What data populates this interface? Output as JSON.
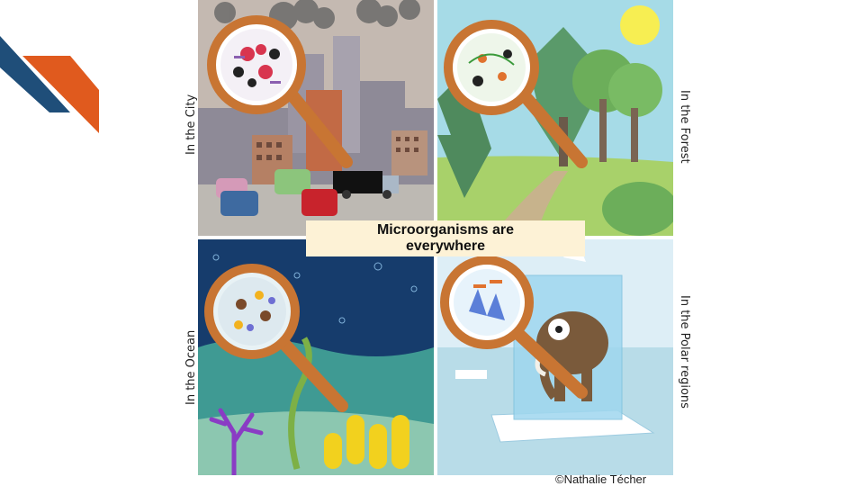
{
  "banner": {
    "line1": "Microorganisms are",
    "line2": "everywhere"
  },
  "labels": {
    "city": "In the City",
    "forest": "In the Forest",
    "ocean": "In the Ocean",
    "polar": "In the Polar regions"
  },
  "credit": "©Nathalie Técher",
  "colors": {
    "deco_blue": "#1f4e79",
    "deco_orange": "#e05a1e",
    "magnifier": "#c87533"
  },
  "icons": [
    "magnifying-glass-icon",
    "sun-icon",
    "mammoth-icon",
    "coral-icon",
    "truck-icon",
    "factory-icon"
  ]
}
